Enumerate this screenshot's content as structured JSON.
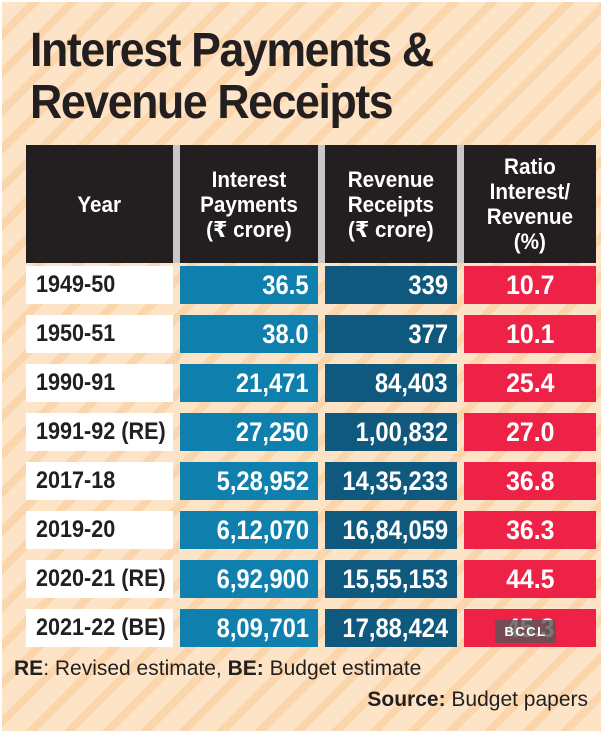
{
  "title": {
    "line1": "Interest Payments &",
    "line2": "Revenue Receipts"
  },
  "table": {
    "headers": {
      "year": "Year",
      "interest": "Interest\nPayments\n(₹ crore)",
      "revenue": "Revenue\nReceipts\n(₹ crore)",
      "ratio": "Ratio\nInterest/\nRevenue\n(%)"
    },
    "rows": [
      {
        "year": "1949-50",
        "interest": "36.5",
        "revenue": "339",
        "ratio": "10.7"
      },
      {
        "year": "1950-51",
        "interest": "38.0",
        "revenue": "377",
        "ratio": "10.1"
      },
      {
        "year": "1990-91",
        "interest": "21,471",
        "revenue": "84,403",
        "ratio": "25.4"
      },
      {
        "year": "1991-92 (RE)",
        "interest": "27,250",
        "revenue": "1,00,832",
        "ratio": "27.0"
      },
      {
        "year": "2017-18",
        "interest": "5,28,952",
        "revenue": "14,35,233",
        "ratio": "36.8"
      },
      {
        "year": "2019-20",
        "interest": "6,12,070",
        "revenue": "16,84,059",
        "ratio": "36.3"
      },
      {
        "year": "2020-21 (RE)",
        "interest": "6,92,900",
        "revenue": "15,55,153",
        "ratio": "44.5"
      },
      {
        "year": "2021-22 (BE)",
        "interest": "8,09,701",
        "revenue": "17,88,424",
        "ratio": "45.3"
      }
    ]
  },
  "watermark": {
    "label": "BCCL"
  },
  "footnote": {
    "re_label": "RE",
    "re_rest": ": Revised estimate, ",
    "be_label": "BE:",
    "be_rest": " Budget estimate"
  },
  "source": {
    "label": "Source:",
    "rest": " Budget papers"
  },
  "colors": {
    "background": "#fde4c6",
    "background_stripe": "#fbd5ab",
    "header_black": "#231f20",
    "header_separator_gray": "#c7c7c9",
    "interest_blue": "#0f7fad",
    "revenue_blue": "#10597e",
    "ratio_red": "#ee2147",
    "year_cell_white": "#ffffff",
    "title_text": "#231f20"
  },
  "chart_data": {
    "type": "table",
    "title": "Interest Payments & Revenue Receipts",
    "columns": [
      "Year",
      "Interest Payments (₹ crore)",
      "Revenue Receipts (₹ crore)",
      "Ratio Interest/Revenue (%)"
    ],
    "rows": [
      [
        "1949-50",
        36.5,
        339,
        10.7
      ],
      [
        "1950-51",
        38.0,
        377,
        10.1
      ],
      [
        "1990-91",
        21471,
        84403,
        25.4
      ],
      [
        "1991-92 (RE)",
        27250,
        100832,
        27.0
      ],
      [
        "2017-18",
        528952,
        1435233,
        36.8
      ],
      [
        "2019-20",
        612070,
        1684059,
        36.3
      ],
      [
        "2020-21 (RE)",
        692900,
        1555153,
        44.5
      ],
      [
        "2021-22 (BE)",
        809701,
        1788424,
        45.3
      ]
    ],
    "notes": "RE: Revised estimate, BE: Budget estimate",
    "source": "Budget papers"
  }
}
